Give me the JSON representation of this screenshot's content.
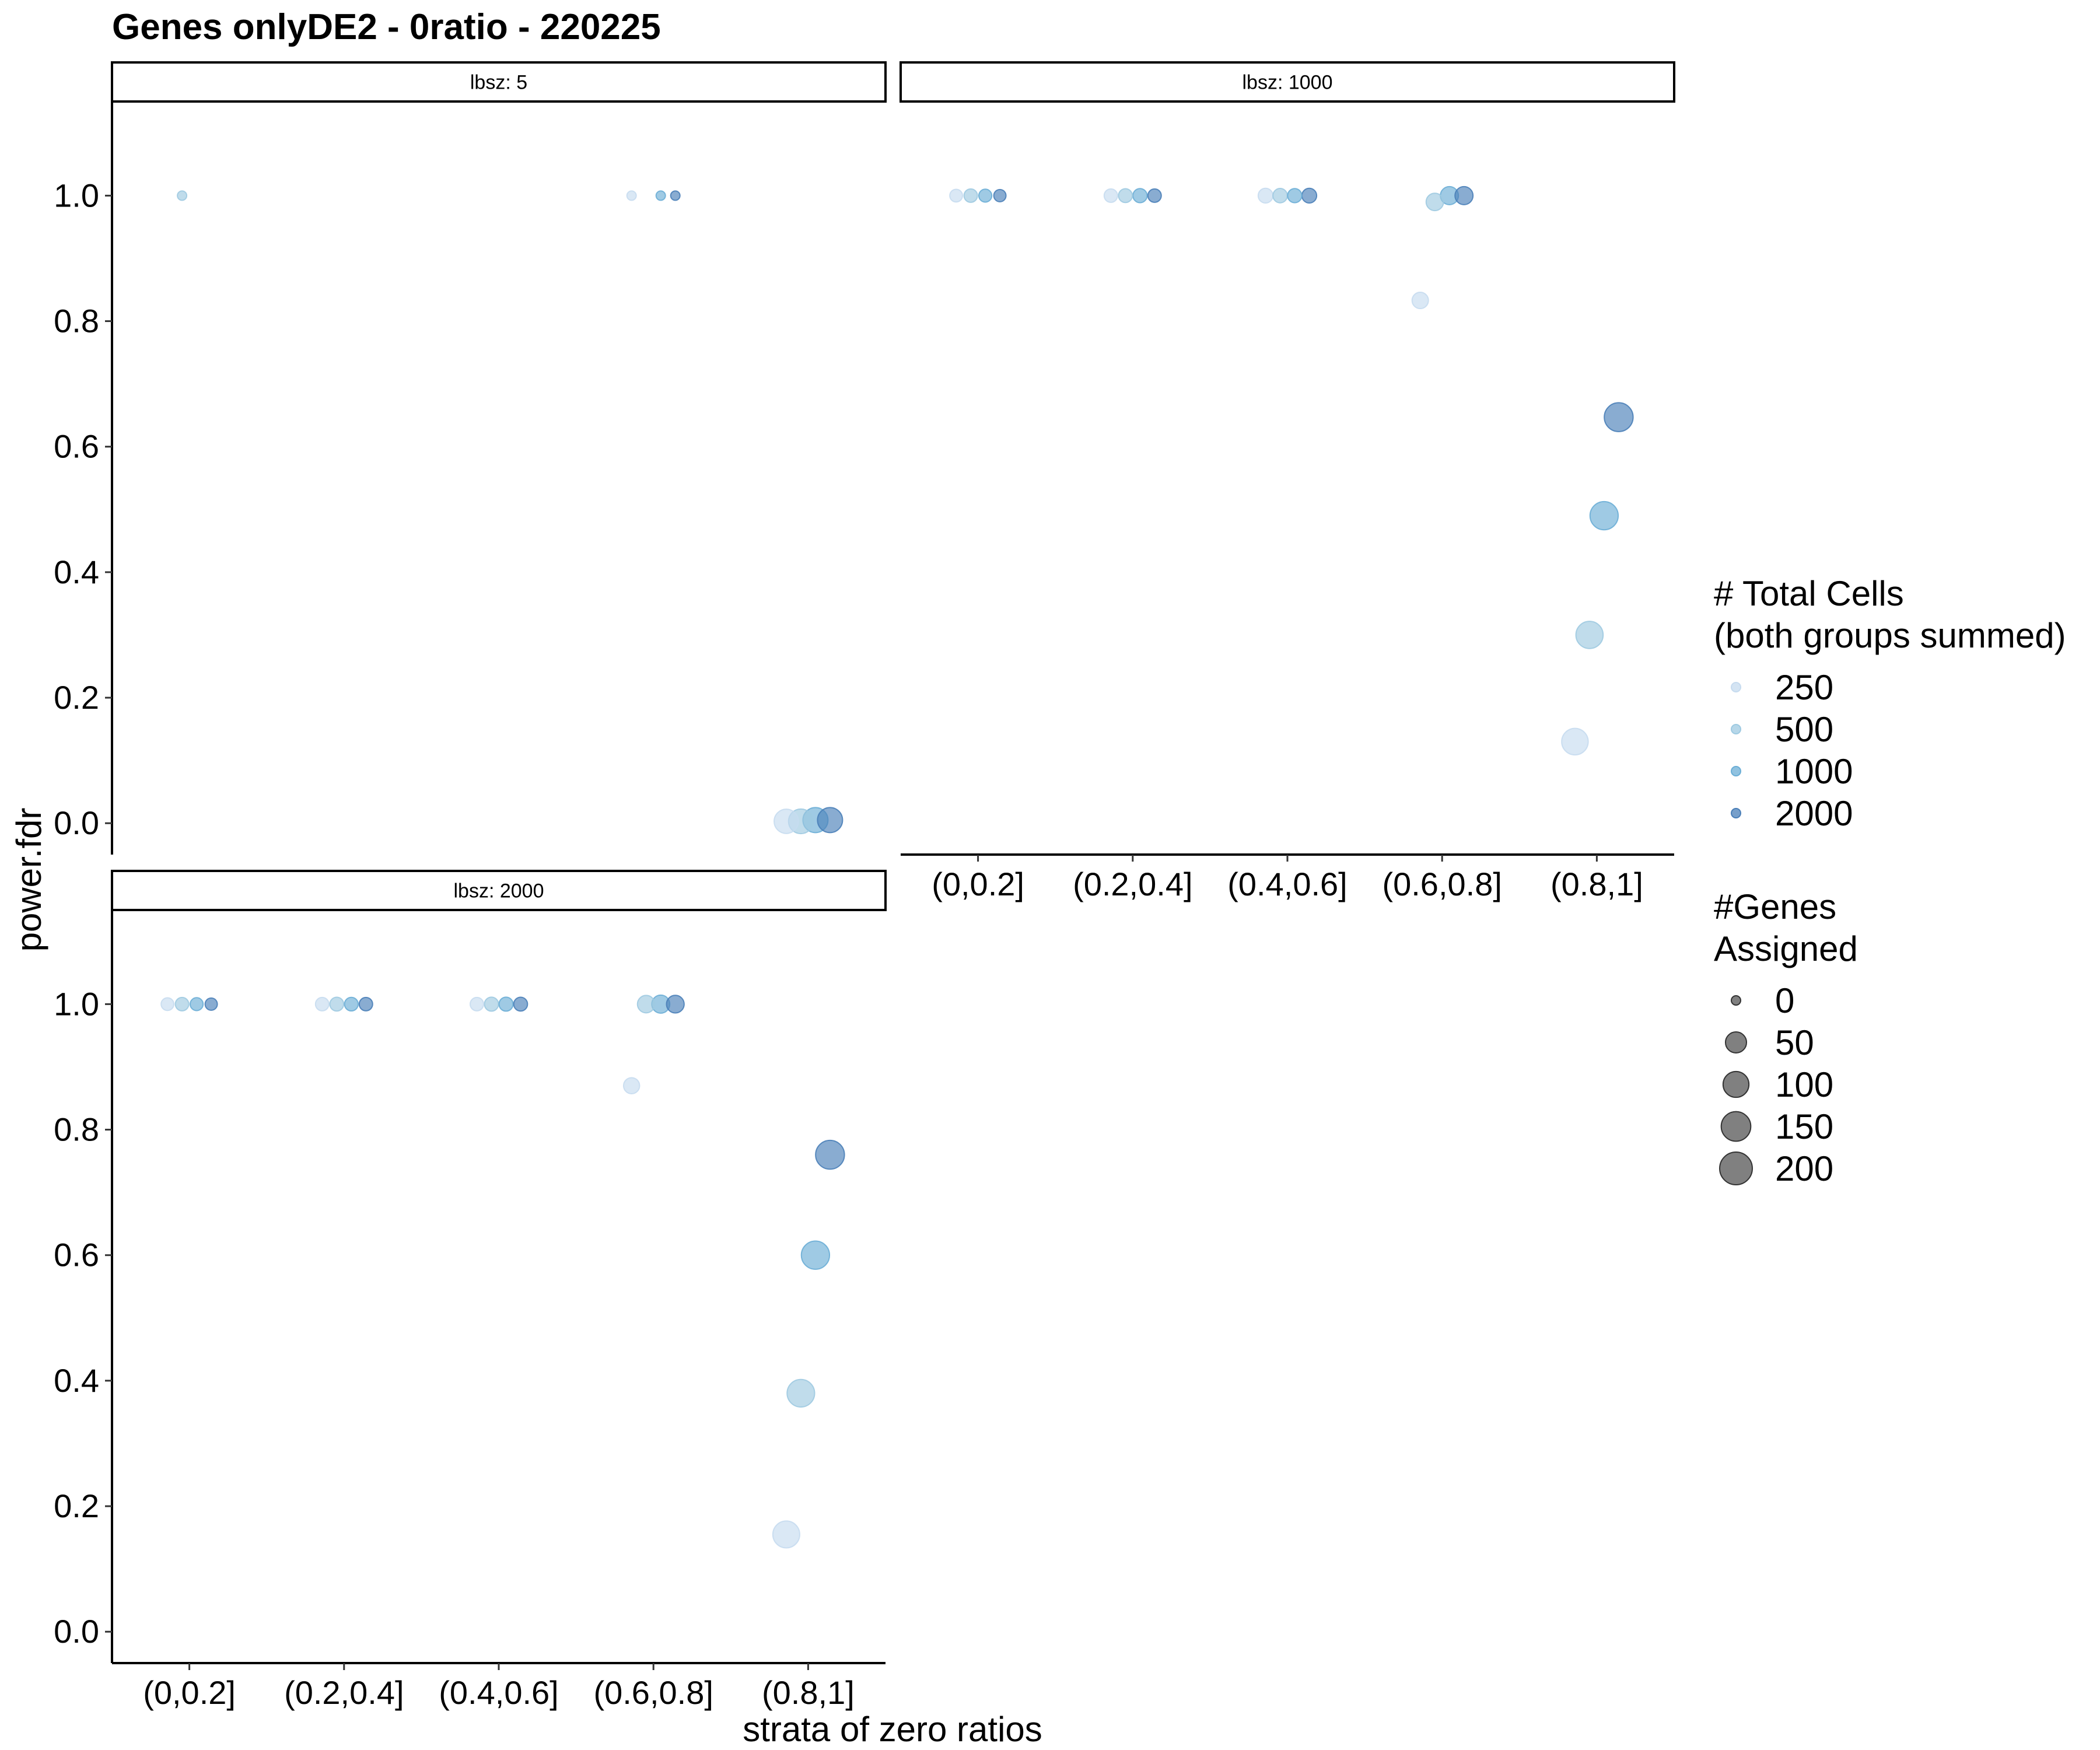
{
  "chart_data": {
    "type": "scatter",
    "title": "Genes onlyDE2 - 0ratio - 220225",
    "xlabel": "strata of zero ratios",
    "ylabel": "power.fdr",
    "categories": [
      "(0,0.2]",
      "(0.2,0.4]",
      "(0.4,0.6]",
      "(0.6,0.8]",
      "(0.8,1]"
    ],
    "y_ticks": [
      "0.0",
      "0.2",
      "0.4",
      "0.6",
      "0.8",
      "1.0"
    ],
    "ylim": [
      -0.05,
      1.15
    ],
    "grid": false,
    "legend_position": "right",
    "legend_color": {
      "title_lines": [
        "# Total Cells",
        "(both groups summed)"
      ],
      "entries": [
        {
          "label": "250",
          "color": "#c6dbef"
        },
        {
          "label": "500",
          "color": "#9ecae1"
        },
        {
          "label": "1000",
          "color": "#6baed6"
        },
        {
          "label": "2000",
          "color": "#4a7fb8"
        }
      ]
    },
    "legend_size": {
      "title_lines": [
        "#Genes",
        "Assigned"
      ],
      "entries": [
        "0",
        "50",
        "100",
        "150",
        "200"
      ],
      "values": [
        0,
        50,
        100,
        150,
        200
      ]
    },
    "panels": [
      {
        "label": "lbsz: 5",
        "points": [
          {
            "cat": 0,
            "cells": 500,
            "y": 1.0,
            "genes": 2
          },
          {
            "cat": 3,
            "cells": 250,
            "y": 1.0,
            "genes": 2
          },
          {
            "cat": 3,
            "cells": 1000,
            "y": 1.0,
            "genes": 2
          },
          {
            "cat": 3,
            "cells": 2000,
            "y": 1.0,
            "genes": 2
          },
          {
            "cat": 4,
            "cells": 250,
            "y": 0.003,
            "genes": 110
          },
          {
            "cat": 4,
            "cells": 500,
            "y": 0.003,
            "genes": 115
          },
          {
            "cat": 4,
            "cells": 1000,
            "y": 0.005,
            "genes": 120
          },
          {
            "cat": 4,
            "cells": 2000,
            "y": 0.005,
            "genes": 120
          }
        ]
      },
      {
        "label": "lbsz: 1000",
        "points": [
          {
            "cat": 0,
            "cells": 250,
            "y": 1.0,
            "genes": 12
          },
          {
            "cat": 0,
            "cells": 500,
            "y": 1.0,
            "genes": 15
          },
          {
            "cat": 0,
            "cells": 1000,
            "y": 1.0,
            "genes": 13
          },
          {
            "cat": 0,
            "cells": 2000,
            "y": 1.0,
            "genes": 10
          },
          {
            "cat": 1,
            "cells": 250,
            "y": 1.0,
            "genes": 15
          },
          {
            "cat": 1,
            "cells": 500,
            "y": 1.0,
            "genes": 17
          },
          {
            "cat": 1,
            "cells": 1000,
            "y": 1.0,
            "genes": 19
          },
          {
            "cat": 1,
            "cells": 2000,
            "y": 1.0,
            "genes": 15
          },
          {
            "cat": 2,
            "cells": 250,
            "y": 1.0,
            "genes": 22
          },
          {
            "cat": 2,
            "cells": 500,
            "y": 1.0,
            "genes": 20
          },
          {
            "cat": 2,
            "cells": 1000,
            "y": 1.0,
            "genes": 19
          },
          {
            "cat": 2,
            "cells": 2000,
            "y": 1.0,
            "genes": 22
          },
          {
            "cat": 3,
            "cells": 250,
            "y": 0.833,
            "genes": 32
          },
          {
            "cat": 3,
            "cells": 500,
            "y": 0.99,
            "genes": 40
          },
          {
            "cat": 3,
            "cells": 1000,
            "y": 1.0,
            "genes": 45
          },
          {
            "cat": 3,
            "cells": 2000,
            "y": 1.0,
            "genes": 45
          },
          {
            "cat": 4,
            "cells": 250,
            "y": 0.13,
            "genes": 140
          },
          {
            "cat": 4,
            "cells": 500,
            "y": 0.3,
            "genes": 150
          },
          {
            "cat": 4,
            "cells": 1000,
            "y": 0.49,
            "genes": 165
          },
          {
            "cat": 4,
            "cells": 2000,
            "y": 0.647,
            "genes": 175
          }
        ]
      },
      {
        "label": "lbsz: 2000",
        "points": [
          {
            "cat": 0,
            "cells": 250,
            "y": 1.0,
            "genes": 12
          },
          {
            "cat": 0,
            "cells": 500,
            "y": 1.0,
            "genes": 15
          },
          {
            "cat": 0,
            "cells": 1000,
            "y": 1.0,
            "genes": 13
          },
          {
            "cat": 0,
            "cells": 2000,
            "y": 1.0,
            "genes": 10
          },
          {
            "cat": 1,
            "cells": 250,
            "y": 1.0,
            "genes": 15
          },
          {
            "cat": 1,
            "cells": 500,
            "y": 1.0,
            "genes": 17
          },
          {
            "cat": 1,
            "cells": 1000,
            "y": 1.0,
            "genes": 16
          },
          {
            "cat": 1,
            "cells": 2000,
            "y": 1.0,
            "genes": 15
          },
          {
            "cat": 2,
            "cells": 250,
            "y": 1.0,
            "genes": 15
          },
          {
            "cat": 2,
            "cells": 500,
            "y": 1.0,
            "genes": 18
          },
          {
            "cat": 2,
            "cells": 1000,
            "y": 1.0,
            "genes": 18
          },
          {
            "cat": 2,
            "cells": 2000,
            "y": 1.0,
            "genes": 17
          },
          {
            "cat": 3,
            "cells": 250,
            "y": 0.87,
            "genes": 30
          },
          {
            "cat": 3,
            "cells": 500,
            "y": 1.0,
            "genes": 40
          },
          {
            "cat": 3,
            "cells": 1000,
            "y": 1.0,
            "genes": 45
          },
          {
            "cat": 3,
            "cells": 2000,
            "y": 1.0,
            "genes": 42
          },
          {
            "cat": 4,
            "cells": 250,
            "y": 0.155,
            "genes": 145
          },
          {
            "cat": 4,
            "cells": 500,
            "y": 0.38,
            "genes": 155
          },
          {
            "cat": 4,
            "cells": 1000,
            "y": 0.6,
            "genes": 165
          },
          {
            "cat": 4,
            "cells": 2000,
            "y": 0.76,
            "genes": 175
          }
        ]
      }
    ]
  }
}
